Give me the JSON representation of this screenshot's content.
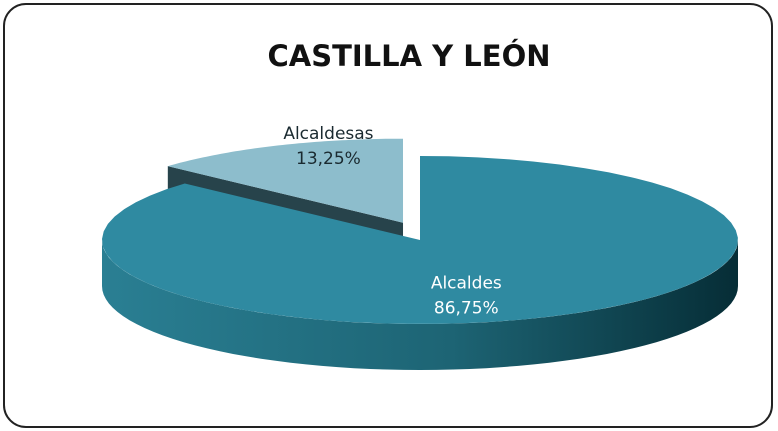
{
  "chart_data": {
    "type": "pie",
    "title": "CASTILLA Y LEÓN",
    "categories": [
      "Alcaldes",
      "Alcaldesas"
    ],
    "values": [
      86.75,
      13.25
    ],
    "value_labels": [
      "86,75%",
      "13,25%"
    ],
    "colors": [
      "#2f8aa1",
      "#8dbdcc"
    ]
  }
}
